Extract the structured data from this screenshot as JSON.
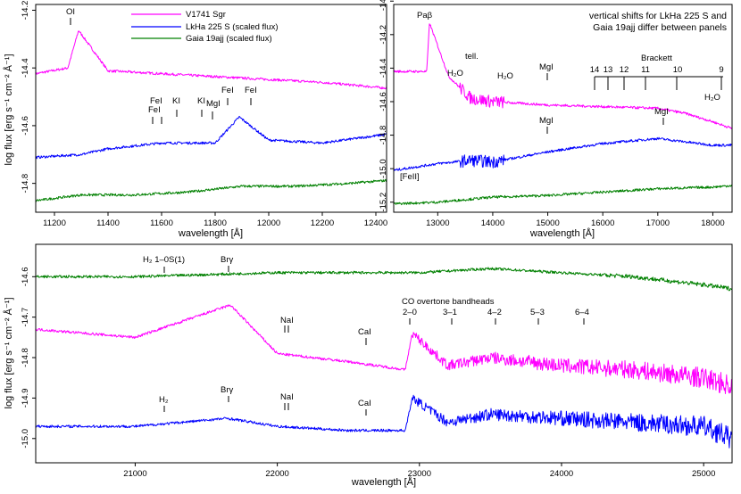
{
  "colors": {
    "v1741": "#ff00ff",
    "lkha": "#0000ff",
    "gaia": "#008000",
    "axis": "#000000"
  },
  "chart_data": [
    {
      "type": "line",
      "panel": "top-left",
      "xlabel": "wavelength [Å]",
      "ylabel": "log flux [erg s⁻¹ cm⁻² Å⁻¹]",
      "xlim": [
        11130,
        12440
      ],
      "ylim": [
        -14.9,
        -14.18
      ],
      "xticks": [
        11200,
        11400,
        11600,
        11800,
        12000,
        12200,
        12400
      ],
      "yticks": [
        -14.8,
        -14.6,
        -14.4,
        -14.2
      ],
      "legend": [
        "V1741 Sgr",
        "LkHa 225 S (scaled flux)",
        "Gaia 19ajj (scaled flux)"
      ],
      "legend_position": "top-center",
      "series": [
        {
          "name": "V1741 Sgr",
          "color": "magenta",
          "x": [
            11130,
            11250,
            11290,
            11400,
            11600,
            11800,
            12000,
            12200,
            12440
          ],
          "y": [
            -14.42,
            -14.4,
            -14.27,
            -14.41,
            -14.42,
            -14.43,
            -14.44,
            -14.45,
            -14.47
          ]
        },
        {
          "name": "LkHa 225 S (scaled flux)",
          "color": "blue",
          "x": [
            11130,
            11300,
            11400,
            11600,
            11800,
            11890,
            12000,
            12200,
            12440
          ],
          "y": [
            -14.71,
            -14.7,
            -14.68,
            -14.66,
            -14.66,
            -14.57,
            -14.65,
            -14.66,
            -14.63
          ]
        },
        {
          "name": "Gaia 19ajj (scaled flux)",
          "color": "green",
          "x": [
            11130,
            11300,
            11500,
            11700,
            11900,
            12100,
            12300,
            12440
          ],
          "y": [
            -14.86,
            -14.84,
            -14.84,
            -14.83,
            -14.81,
            -14.81,
            -14.8,
            -14.79
          ]
        }
      ],
      "annotations": [
        "OI",
        "FeI",
        "FeI",
        "KI",
        "KI",
        "MgI",
        "FeI",
        "FeI"
      ]
    },
    {
      "type": "line",
      "panel": "top-right",
      "xlabel": "wavelength [Å]",
      "xlim": [
        12200,
        18350
      ],
      "ylim": [
        -15.26,
        -14.02
      ],
      "xticks": [
        13000,
        14000,
        15000,
        16000,
        17000,
        18000
      ],
      "yticks": [
        -15.2,
        -15.0,
        -14.8,
        -14.6,
        -14.4,
        -14.2,
        -14.0
      ],
      "note": [
        "vertical shifts for LkHa 225 S and",
        "Gaia 19ajj differ between panels"
      ],
      "series": [
        {
          "name": "V1741 Sgr",
          "color": "magenta",
          "x": [
            12200,
            12800,
            12850,
            13200,
            13600,
            14000,
            15000,
            16000,
            17000,
            17500,
            18000,
            18350
          ],
          "y": [
            -14.42,
            -14.42,
            -14.13,
            -14.45,
            -14.58,
            -14.6,
            -14.62,
            -14.63,
            -14.64,
            -14.67,
            -14.72,
            -14.76
          ]
        },
        {
          "name": "LkHa 225 S (scaled flux)",
          "color": "blue",
          "x": [
            12200,
            13000,
            13600,
            14000,
            15000,
            16000,
            17000,
            17500,
            18000,
            18350
          ],
          "y": [
            -15.01,
            -14.97,
            -14.95,
            -14.96,
            -14.9,
            -14.85,
            -14.82,
            -14.84,
            -14.86,
            -14.86
          ]
        },
        {
          "name": "Gaia 19ajj (scaled flux)",
          "color": "green",
          "x": [
            12200,
            13000,
            14000,
            15000,
            16000,
            17000,
            18000,
            18350
          ],
          "y": [
            -15.21,
            -15.2,
            -15.17,
            -15.16,
            -15.14,
            -15.12,
            -15.11,
            -15.1
          ]
        }
      ],
      "annotations": [
        "Paβ",
        "tell.",
        "H₂O",
        "H₂O",
        "MgI",
        "MgI",
        "MgI",
        "[FeII]",
        "H₂O"
      ],
      "brackett": {
        "label": "Brackett",
        "numbers": [
          "14",
          "13",
          "12",
          "11",
          "10",
          "9"
        ]
      }
    },
    {
      "type": "line",
      "panel": "bottom",
      "xlabel": "wavelength [Å]",
      "ylabel": "log flux [erg s⁻¹ cm⁻² Å⁻¹]",
      "xlim": [
        20300,
        25200
      ],
      "ylim": [
        -15.06,
        -14.52
      ],
      "xticks": [
        21000,
        22000,
        23000,
        24000,
        25000
      ],
      "yticks": [
        -15.0,
        -14.9,
        -14.8,
        -14.7,
        -14.6
      ],
      "series": [
        {
          "name": "Gaia 19ajj (scaled flux)",
          "color": "green",
          "x": [
            20300,
            21000,
            22000,
            23000,
            23500,
            24000,
            24500,
            25000,
            25200
          ],
          "y": [
            -14.6,
            -14.6,
            -14.59,
            -14.59,
            -14.58,
            -14.59,
            -14.6,
            -14.62,
            -14.63
          ]
        },
        {
          "name": "V1741 Sgr",
          "color": "magenta",
          "x": [
            20300,
            21000,
            21670,
            22000,
            22500,
            22900,
            22950,
            23200,
            23500,
            24000,
            24500,
            25000,
            25200
          ],
          "y": [
            -14.73,
            -14.75,
            -14.67,
            -14.79,
            -14.81,
            -14.83,
            -14.74,
            -14.82,
            -14.8,
            -14.82,
            -14.83,
            -14.85,
            -14.87
          ]
        },
        {
          "name": "LkHa 225 S (scaled flux)",
          "color": "blue",
          "x": [
            20300,
            21000,
            21650,
            22000,
            22500,
            22900,
            22950,
            23200,
            23500,
            24000,
            24500,
            25000,
            25200
          ],
          "y": [
            -14.97,
            -14.97,
            -14.95,
            -14.97,
            -14.98,
            -14.98,
            -14.9,
            -14.96,
            -14.94,
            -14.95,
            -14.96,
            -14.97,
            -15.0
          ]
        }
      ],
      "annotations": [
        "H₂ 1–0S(1)",
        "Brγ",
        "NaI",
        "CaI",
        "CO overtone bandheads",
        "2–0",
        "3–1",
        "4–2",
        "5–3",
        "6–4",
        "H₂",
        "Brγ",
        "NaI",
        "CaI"
      ]
    }
  ]
}
